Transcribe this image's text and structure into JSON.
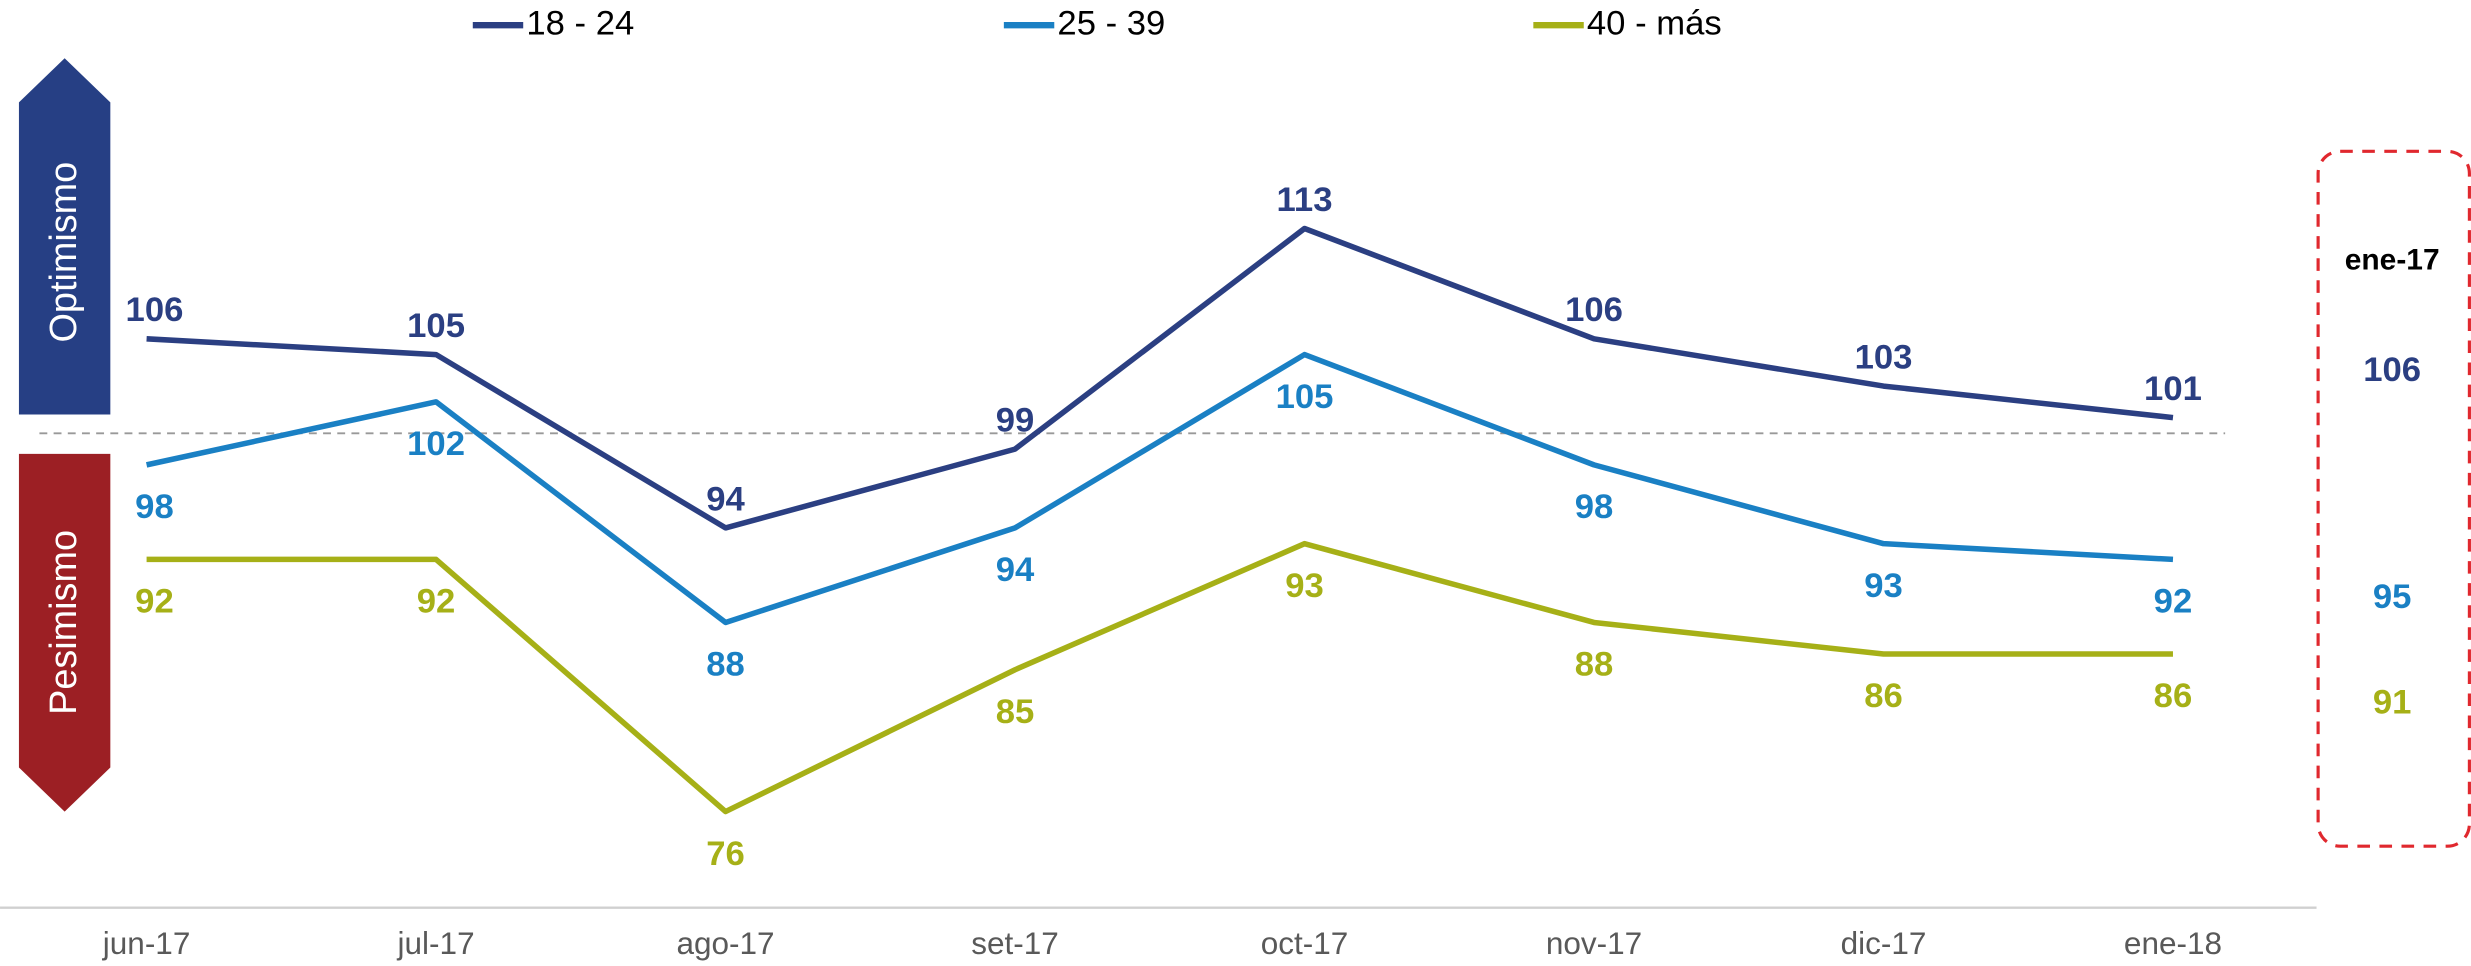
{
  "chart_data": {
    "type": "line",
    "categories": [
      "jun-17",
      "jul-17",
      "ago-17",
      "set-17",
      "oct-17",
      "nov-17",
      "dic-17",
      "ene-18"
    ],
    "series": [
      {
        "name": "18 - 24",
        "color": "#2b3f82",
        "values": [
          106,
          105,
          94,
          99,
          113,
          106,
          103,
          101
        ]
      },
      {
        "name": "25 - 39",
        "color": "#1a80c4",
        "values": [
          98,
          102,
          88,
          94,
          105,
          98,
          93,
          92
        ]
      },
      {
        "name": "40 - más",
        "color": "#a6b017",
        "values": [
          92,
          92,
          76,
          85,
          93,
          88,
          86,
          86
        ]
      }
    ],
    "ylim": [
      70,
      120
    ],
    "reference_line": 100,
    "legend": "top",
    "zone_labels": {
      "upper": "Optimismo",
      "lower": "Pesimismo"
    },
    "side_panel": {
      "title": "ene-17",
      "values": [
        106,
        95,
        91
      ]
    }
  }
}
